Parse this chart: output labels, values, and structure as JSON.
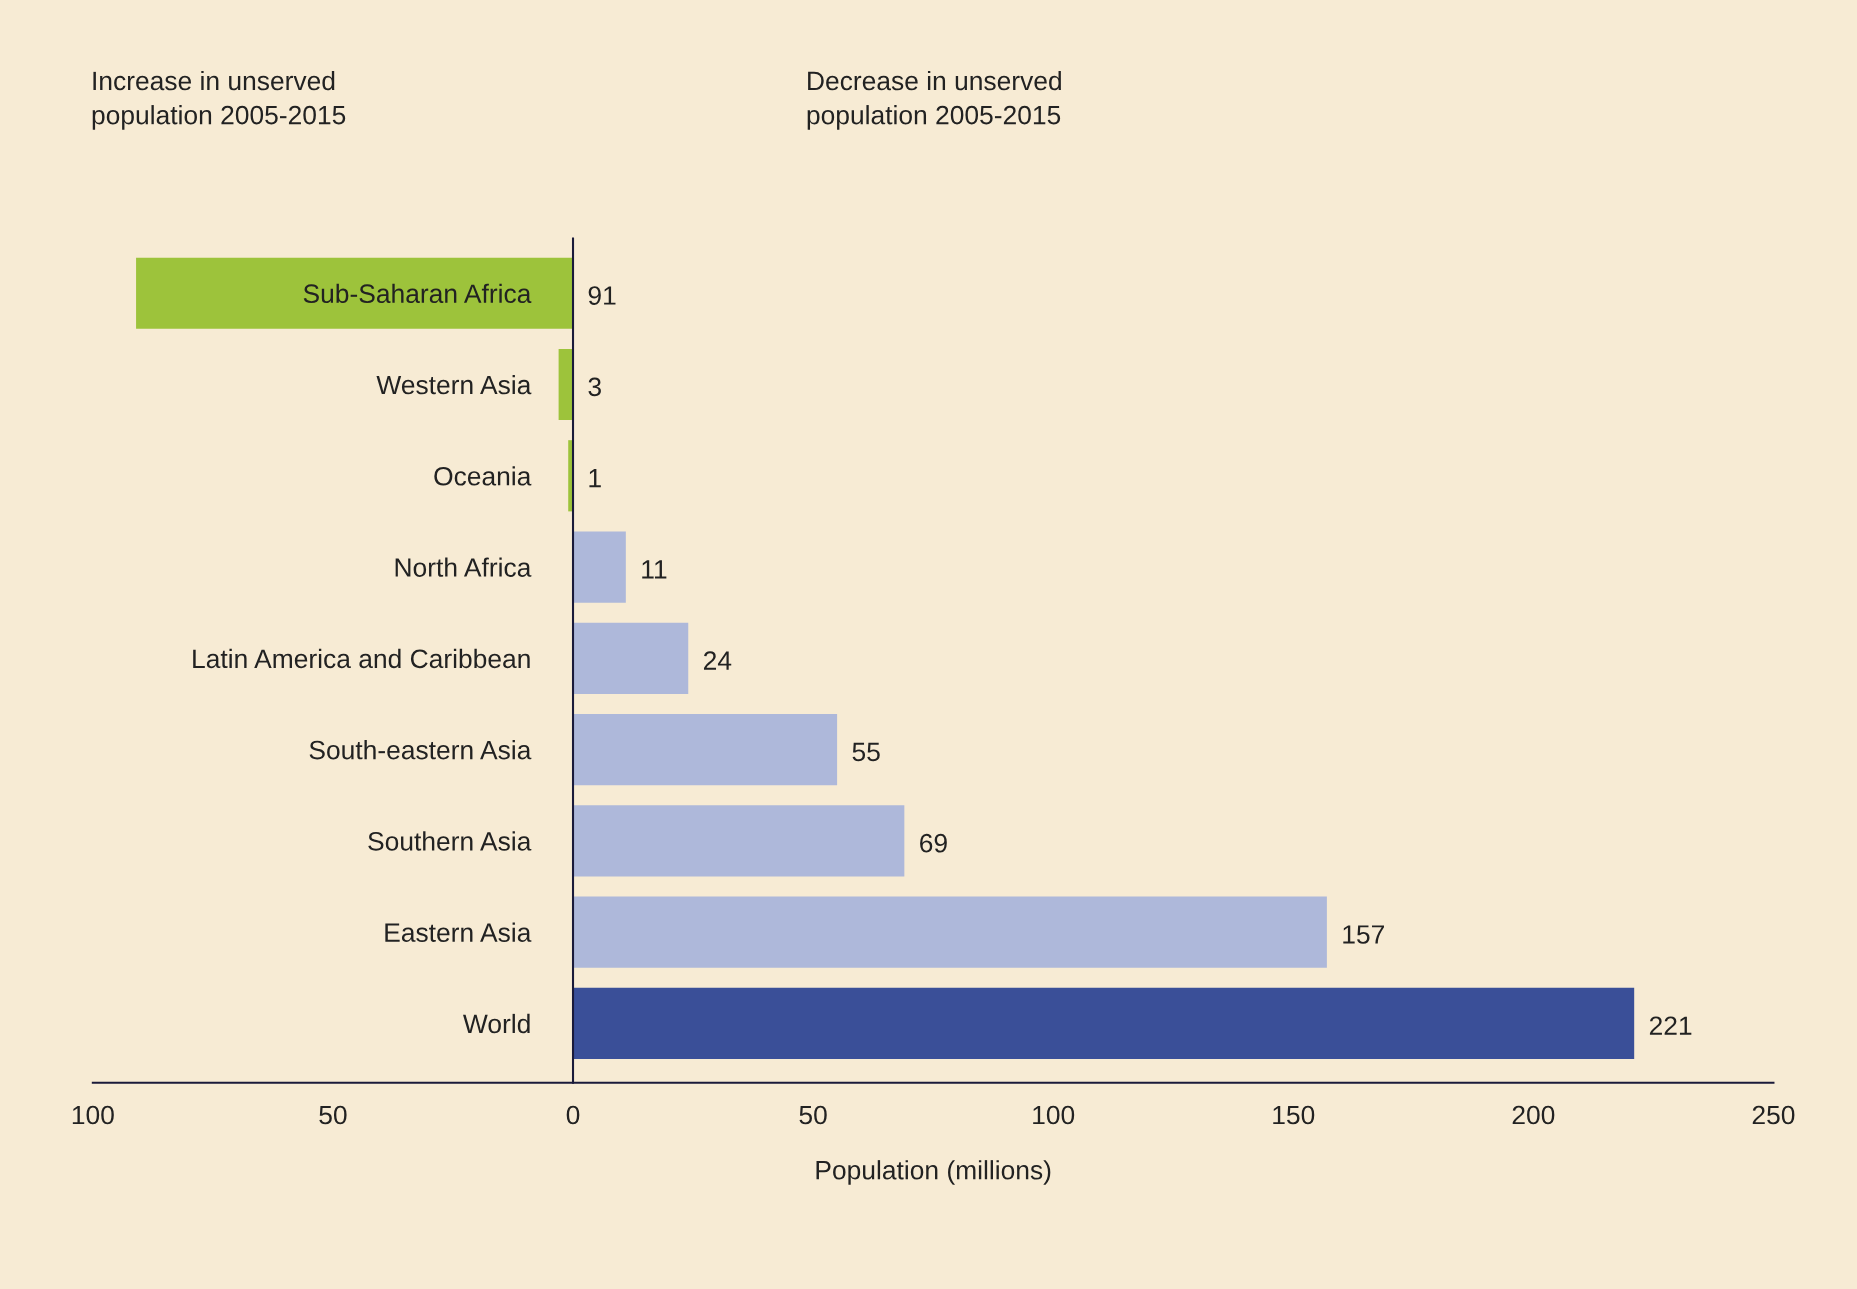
{
  "chart_data": {
    "type": "bar",
    "orientation": "horizontal",
    "xlabel": "Population (millions)",
    "annotations": [
      "Increase in unserved\npopulation 2005-2015",
      "Decrease in unserved\npopulation 2005-2015"
    ],
    "categories": [
      "Sub-Saharan Africa",
      "Western Asia",
      "Oceania",
      "North Africa",
      "Latin America and Caribbean",
      "South-eastern Asia",
      "Southern Asia",
      "Eastern Asia",
      "World"
    ],
    "values": [
      91,
      3,
      1,
      11,
      24,
      55,
      69,
      157,
      221
    ],
    "base": [
      -91,
      -3,
      -1,
      0,
      0,
      0,
      0,
      0,
      0
    ],
    "data_labels": true,
    "colors": [
      "#9dc33b",
      "#9dc33b",
      "#9dc33b",
      "#aeb8da",
      "#aeb8da",
      "#aeb8da",
      "#aeb8da",
      "#aeb8da",
      "#3a4f98"
    ],
    "xlim": [
      -100,
      250
    ],
    "xticks": [
      {
        "value": -100,
        "label": "100"
      },
      {
        "value": -50,
        "label": "50"
      },
      0,
      50,
      100,
      150,
      200,
      250
    ],
    "grid": false,
    "legend": false
  }
}
